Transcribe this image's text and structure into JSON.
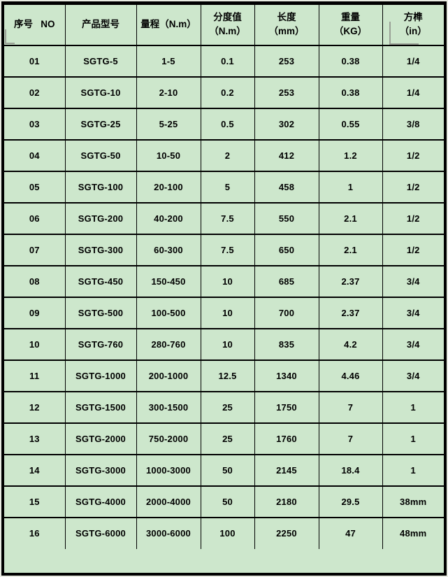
{
  "page": {
    "background_color": "#e9ece3",
    "table_fill_color": "#cde7cc",
    "grid_color": "#000000",
    "corner_mark_color": "#9aa096"
  },
  "table": {
    "columns": [
      {
        "id": "no",
        "label": "序号   NO"
      },
      {
        "id": "model",
        "label": "产品型号"
      },
      {
        "id": "range",
        "label": "量程（N.m）"
      },
      {
        "id": "division",
        "label": "分度值\n（N.m）"
      },
      {
        "id": "length",
        "label": "长度\n（mm）"
      },
      {
        "id": "weight",
        "label": "重量\n（KG）"
      },
      {
        "id": "drive",
        "label": "方榫\n（in）"
      }
    ],
    "rows": [
      {
        "no": "01",
        "model": "SGTG-5",
        "range": "1-5",
        "division": "0.1",
        "length": "253",
        "weight": "0.38",
        "drive": "1/4"
      },
      {
        "no": "02",
        "model": "SGTG-10",
        "range": "2-10",
        "division": "0.2",
        "length": "253",
        "weight": "0.38",
        "drive": "1/4"
      },
      {
        "no": "03",
        "model": "SGTG-25",
        "range": "5-25",
        "division": "0.5",
        "length": "302",
        "weight": "0.55",
        "drive": "3/8"
      },
      {
        "no": "04",
        "model": "SGTG-50",
        "range": "10-50",
        "division": "2",
        "length": "412",
        "weight": "1.2",
        "drive": "1/2"
      },
      {
        "no": "05",
        "model": "SGTG-100",
        "range": "20-100",
        "division": "5",
        "length": "458",
        "weight": "1",
        "drive": "1/2"
      },
      {
        "no": "06",
        "model": "SGTG-200",
        "range": "40-200",
        "division": "7.5",
        "length": "550",
        "weight": "2.1",
        "drive": "1/2"
      },
      {
        "no": "07",
        "model": "SGTG-300",
        "range": "60-300",
        "division": "7.5",
        "length": "650",
        "weight": "2.1",
        "drive": "1/2"
      },
      {
        "no": "08",
        "model": "SGTG-450",
        "range": "150-450",
        "division": "10",
        "length": "685",
        "weight": "2.37",
        "drive": "3/4"
      },
      {
        "no": "09",
        "model": "SGTG-500",
        "range": "100-500",
        "division": "10",
        "length": "700",
        "weight": "2.37",
        "drive": "3/4"
      },
      {
        "no": "10",
        "model": "SGTG-760",
        "range": "280-760",
        "division": "10",
        "length": "835",
        "weight": "4.2",
        "drive": "3/4"
      },
      {
        "no": "11",
        "model": "SGTG-1000",
        "range": "200-1000",
        "division": "12.5",
        "length": "1340",
        "weight": "4.46",
        "drive": "3/4"
      },
      {
        "no": "12",
        "model": "SGTG-1500",
        "range": "300-1500",
        "division": "25",
        "length": "1750",
        "weight": "7",
        "drive": "1"
      },
      {
        "no": "13",
        "model": "SGTG-2000",
        "range": "750-2000",
        "division": "25",
        "length": "1760",
        "weight": "7",
        "drive": "1"
      },
      {
        "no": "14",
        "model": "SGTG-3000",
        "range": "1000-3000",
        "division": "50",
        "length": "2145",
        "weight": "18.4",
        "drive": "1"
      },
      {
        "no": "15",
        "model": "SGTG-4000",
        "range": "2000-4000",
        "division": "50",
        "length": "2180",
        "weight": "29.5",
        "drive": "38mm"
      },
      {
        "no": "16",
        "model": "SGTG-6000",
        "range": "3000-6000",
        "division": "100",
        "length": "2250",
        "weight": "47",
        "drive": "48mm"
      }
    ]
  }
}
